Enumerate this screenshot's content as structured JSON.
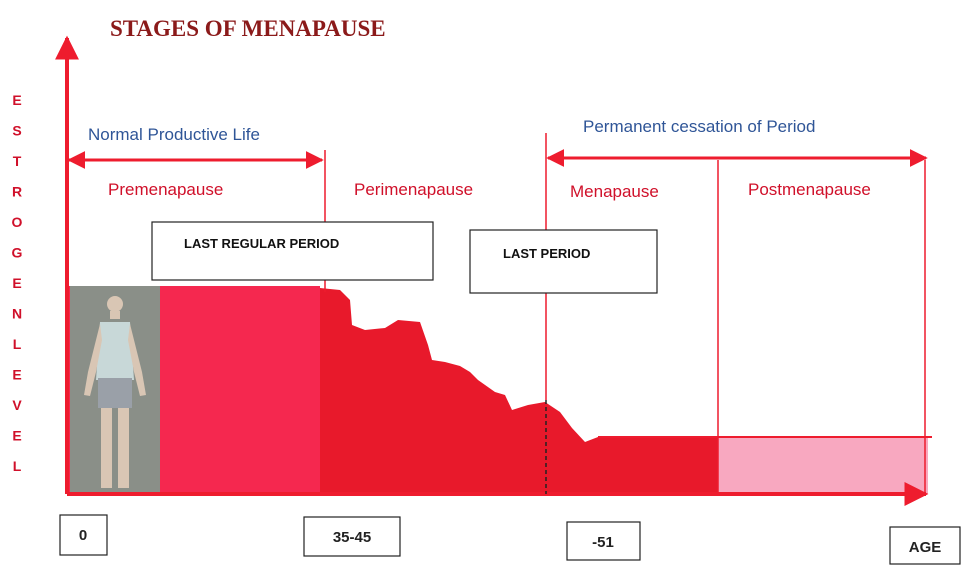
{
  "title": "STAGES OF MENAPAUSE",
  "y_axis_label": "ESTROGENLEVEL",
  "spans": [
    {
      "label": "Normal Productive Life"
    },
    {
      "label": "Permanent cessation of Period"
    }
  ],
  "stages": [
    "Premenapause",
    "Perimenapause",
    "Menapause",
    "Postmenapause"
  ],
  "markers": [
    "LAST REGULAR PERIOD",
    "LAST PERIOD"
  ],
  "x_axis_labels": [
    "0",
    "35-45",
    "-51",
    "AGE"
  ]
}
